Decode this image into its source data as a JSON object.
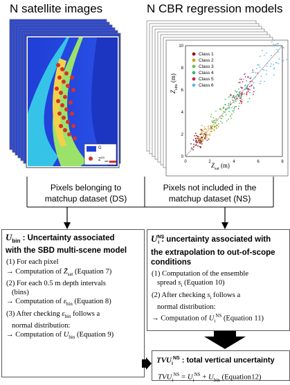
{
  "titles": {
    "left": "N satellite images",
    "right": "N CBR regression models"
  },
  "map_legend": {
    "g_label": "G",
    "z_label": "Z",
    "z_sup": "DS",
    "z_sub": "situ"
  },
  "scatter": {
    "xlabel_main": "Z",
    "xlabel_sub": "sat",
    "xlabel_unit": " (m)",
    "ylabel_main": "Z",
    "ylabel_sub": "situ",
    "ylabel_unit": " (m)",
    "xticks": [
      "0",
      "2",
      "4",
      "6",
      "8"
    ],
    "yticks": [
      "0",
      "2",
      "4",
      "6",
      "8",
      "10"
    ],
    "classes": [
      {
        "label": "Class 1",
        "color": "#8b1a1a"
      },
      {
        "label": "Class 2",
        "color": "#d4a020"
      },
      {
        "label": "Class 3",
        "color": "#6cc04a"
      },
      {
        "label": "Class 4",
        "color": "#3cb878"
      },
      {
        "label": "Class 5",
        "color": "#c42850"
      },
      {
        "label": "Class 6",
        "color": "#5fb8e8"
      }
    ]
  },
  "split": {
    "left_label_1": "Pixels belonging to",
    "left_label_2": "matchup dataset (DS)",
    "right_label_1": "Pixels not included in the",
    "right_label_2": "matchup dataset (NS)"
  },
  "left_box": {
    "symbol": "U",
    "symbol_sub": "bin",
    "head_1": " : Uncertainty associated",
    "head_2": "with the SBD multi-scene model",
    "l1": "(1) For each pixel",
    "l2a": "→ Computation of ",
    "l2b": " (Equation 7)",
    "l3": "(2) For each 0.5 m depth intervals",
    "l4": "(bins)",
    "l5a": "→ Computation of ",
    "l5b": " (Equation 8)",
    "l6a": "(3) After checking ",
    "l6b": " follows a",
    "l7": "normal distribution:",
    "l8a": "→ Computation of ",
    "l8b": " (Equation 9)"
  },
  "right_box": {
    "symbol": "U",
    "symbol_sup": "NS",
    "symbol_sub": "i",
    "head_1": " : uncertainty associated with",
    "head_2": "the extrapolation to out-of-scope",
    "head_3": "conditions",
    "l1": "(1) Computation of the ensemble",
    "l2a": "spread ",
    "l2b": " (Equation 10)",
    "l3a": "(2) After checking ",
    "l3b": " follows a",
    "l4": "normal distribution:",
    "l5a": "→ Computation of ",
    "l5b": " (Equation 11)"
  },
  "tvu_box": {
    "head_a": "TVU",
    "head_b": " : total vertical uncertainty",
    "eq_a": "TVU",
    "eq_b": " = ",
    "eq_c": " + ",
    "eq_d": " (Equation12)"
  }
}
